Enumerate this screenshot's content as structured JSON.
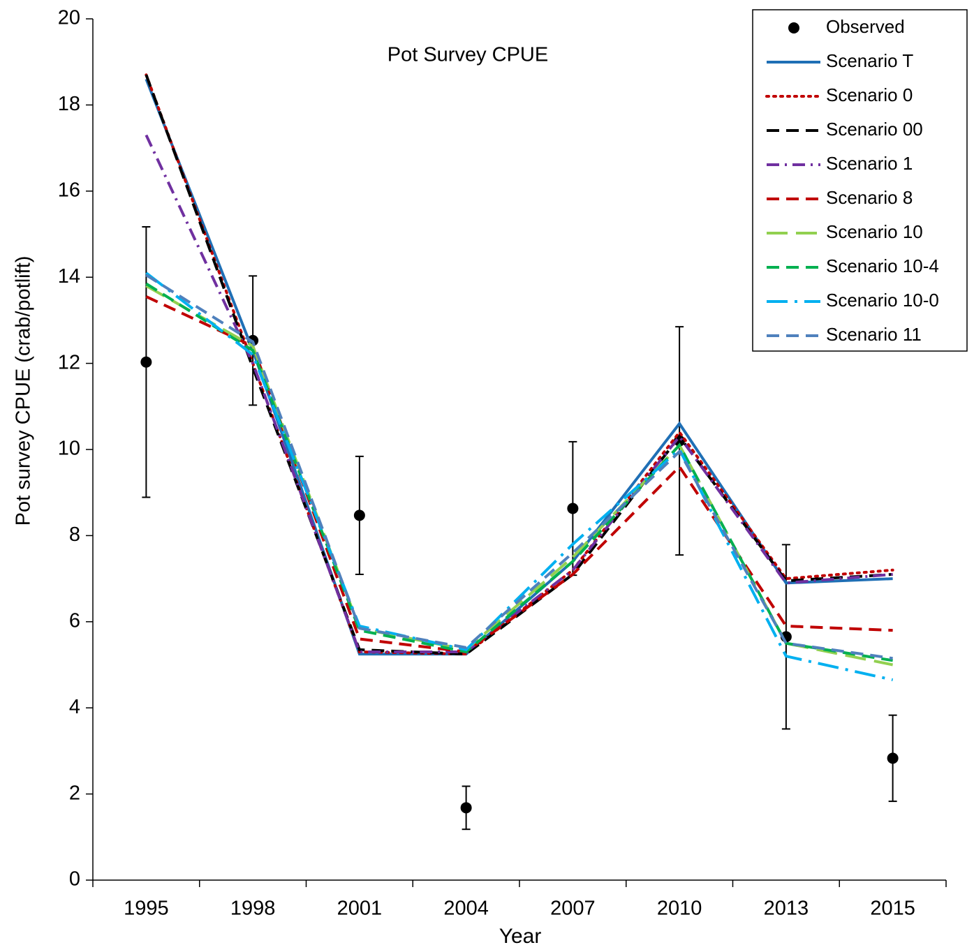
{
  "chart_data": {
    "type": "line",
    "title": "Pot Survey CPUE",
    "x_label": "Year",
    "y_label": "Pot survey CPUE (crab/potlift)",
    "categories": [
      "1995",
      "1998",
      "2001",
      "2004",
      "2007",
      "2010",
      "2013",
      "2015"
    ],
    "ylim": [
      0,
      20
    ],
    "yticks": [
      0,
      2,
      4,
      6,
      8,
      10,
      12,
      14,
      16,
      18,
      20
    ],
    "legend": "top-right",
    "series": [
      {
        "name": "Observed",
        "color": "#000000",
        "marker": "circle",
        "values": [
          12.03,
          12.53,
          8.47,
          1.68,
          8.63,
          10.2,
          5.65,
          2.83
        ],
        "errors": [
          3.14,
          1.5,
          1.37,
          0.5,
          1.55,
          2.65,
          2.14,
          1.0
        ]
      },
      {
        "name": "Scenario T",
        "color": "#1f6fb5",
        "dash": "solid",
        "values": [
          18.6,
          12.3,
          5.25,
          5.25,
          7.4,
          10.6,
          6.9,
          7.0
        ]
      },
      {
        "name": "Scenario 0",
        "color": "#c00000",
        "dash": "dotted",
        "values": [
          18.7,
          12.0,
          5.3,
          5.25,
          7.2,
          10.4,
          7.0,
          7.2
        ]
      },
      {
        "name": "Scenario 00",
        "color": "#000000",
        "dash": "dashed",
        "values": [
          18.7,
          11.9,
          5.35,
          5.25,
          7.1,
          10.3,
          6.95,
          7.1
        ]
      },
      {
        "name": "Scenario 1",
        "color": "#7030a0",
        "dash": "dash-dot",
        "values": [
          17.3,
          12.0,
          5.3,
          5.3,
          7.2,
          10.3,
          6.9,
          7.1
        ]
      },
      {
        "name": "Scenario 8",
        "color": "#c00000",
        "dash": "dashed",
        "values": [
          13.55,
          12.4,
          5.6,
          5.3,
          7.1,
          9.6,
          5.9,
          5.8
        ]
      },
      {
        "name": "Scenario 10",
        "color": "#92d050",
        "dash": "long-dash",
        "values": [
          13.8,
          12.4,
          5.85,
          5.35,
          7.5,
          10.1,
          5.5,
          5.0
        ]
      },
      {
        "name": "Scenario 10-4",
        "color": "#00b050",
        "dash": "dashed",
        "values": [
          13.85,
          12.3,
          5.8,
          5.3,
          7.4,
          10.1,
          5.5,
          5.1
        ]
      },
      {
        "name": "Scenario 10-0",
        "color": "#00b0f0",
        "dash": "long-dash-dot",
        "values": [
          14.1,
          12.2,
          5.9,
          5.35,
          7.8,
          10.0,
          5.2,
          4.65
        ]
      },
      {
        "name": "Scenario 11",
        "color": "#4f81bd",
        "dash": "dashed",
        "values": [
          14.05,
          12.5,
          5.85,
          5.4,
          7.6,
          9.95,
          5.5,
          5.15
        ]
      }
    ]
  }
}
